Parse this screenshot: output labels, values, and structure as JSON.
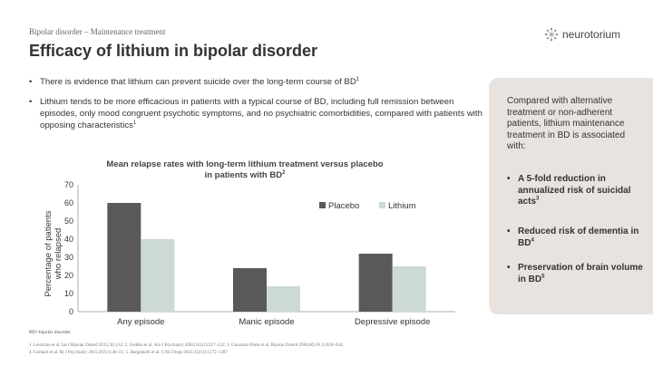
{
  "header": {
    "breadcrumb": "Bipolar disorder – Maintenance treatment",
    "title": "Efficacy of lithium in bipolar disorder",
    "logo_text": "neurotorium"
  },
  "bullets": [
    {
      "text": "There is evidence that lithium can prevent suicide over the long-term course of BD",
      "ref": "1"
    },
    {
      "text": "Lithium tends to be more efficacious in patients with a typical course of BD, including full remission between episodes, only mood congruent psychotic symptoms, and no psychiatric comorbidities, compared with patients with opposing characteristics",
      "ref": "1"
    }
  ],
  "chart_data": {
    "type": "bar",
    "title_line1": "Mean relapse rates with long-term lithium treatment versus placebo",
    "title_line2": "in patients with BD",
    "title_ref": "2",
    "ylabel_line1": "Percentage of patients",
    "ylabel_line2": "who relapsed",
    "ylim": [
      0,
      70
    ],
    "yticks": [
      0,
      10,
      20,
      30,
      40,
      50,
      60,
      70
    ],
    "categories": [
      "Any episode",
      "Manic episode",
      "Depressive episode"
    ],
    "series": [
      {
        "name": "Placebo",
        "color": "#595959",
        "values": [
          60,
          24,
          32
        ]
      },
      {
        "name": "Lithium",
        "color": "#cdd9d3",
        "values": [
          40,
          14,
          25
        ]
      }
    ],
    "legend": "top-right",
    "grid": false
  },
  "sidebar": {
    "intro": "Compared with alternative treatment or non-adherent patients, lithium maintenance treatment in BD is associated with:",
    "items": [
      {
        "text": "A 5-fold reduction in annualized risk of suicidal acts",
        "ref": "3"
      },
      {
        "text": "Reduced risk of dementia in BD",
        "ref": "4"
      },
      {
        "text": "Preservation of brain volume in BD",
        "ref": "5"
      }
    ]
  },
  "footer": {
    "abbreviation": "BD=bipolar disorder",
    "references_line1": "1. Lewitzka et al. Int J Bipolar Disord 2015;3(1):32;  2. Geddes et al. Am J Psychiatry 2004;161(2):217–222;  3. Gonzalez-Pinto et al. Bipolar Disord 2006;8(5 Pt 2):618–624;",
    "references_line2": "4. Gerhard et al. Br J Psychiatry 2015;207(1):46–51;  5. Bergamelli et al. CNS Drugs 2021;35(12):1275–1287"
  },
  "colors": {
    "sidebar_bg": "#e9e3e0",
    "text": "#333333"
  }
}
